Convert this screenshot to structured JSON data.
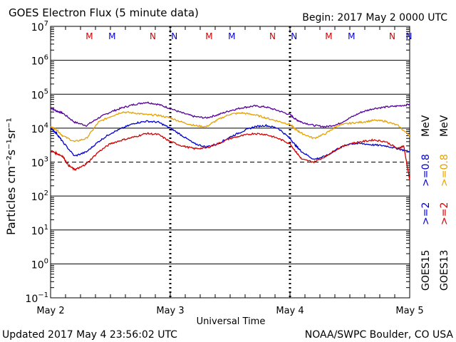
{
  "chart_data": {
    "type": "line",
    "title": "GOES Electron Flux (5 minute data)",
    "begin_label": "Begin: 2017 May 2 0000 UTC",
    "xlabel": "Universal Time",
    "ylabel": "Particles cm⁻²s⁻¹sr⁻¹",
    "updated": "Updated 2017 May  4 23:56:02 UTC",
    "credit": "NOAA/SWPC Boulder, CO USA",
    "x_unit": "days since 2017 May 2 0000 UTC",
    "xlim": [
      0,
      3
    ],
    "x_ticks": [
      {
        "x": 0,
        "label": "May 2"
      },
      {
        "x": 1,
        "label": "May 3"
      },
      {
        "x": 2,
        "label": "May 4"
      },
      {
        "x": 3,
        "label": "May 5"
      }
    ],
    "y_scale": "log",
    "ylim": [
      0.1,
      10000000
    ],
    "y_ticks": [
      {
        "exp": 7,
        "label": "10",
        "sup": "7"
      },
      {
        "exp": 6,
        "label": "10",
        "sup": "6"
      },
      {
        "exp": 5,
        "label": "10",
        "sup": "5"
      },
      {
        "exp": 4,
        "label": "10",
        "sup": "4"
      },
      {
        "exp": 3,
        "label": "10",
        "sup": "3"
      },
      {
        "exp": 2,
        "label": "10",
        "sup": "2"
      },
      {
        "exp": 1,
        "label": "10",
        "sup": "1"
      },
      {
        "exp": 0,
        "label": "10",
        "sup": "0"
      },
      {
        "exp": -1,
        "label": "10",
        "sup": "−1"
      }
    ],
    "threshold": {
      "value": 1000,
      "style": "dashed"
    },
    "grid": true,
    "markers": [
      {
        "x": 0.33,
        "label": "M",
        "color": "#d00000"
      },
      {
        "x": 0.52,
        "label": "M",
        "color": "#0000cc"
      },
      {
        "x": 0.86,
        "label": "N",
        "color": "#d00000"
      },
      {
        "x": 1.04,
        "label": "N",
        "color": "#0000cc"
      },
      {
        "x": 1.33,
        "label": "M",
        "color": "#d00000"
      },
      {
        "x": 1.52,
        "label": "M",
        "color": "#0000cc"
      },
      {
        "x": 1.86,
        "label": "N",
        "color": "#d00000"
      },
      {
        "x": 2.04,
        "label": "N",
        "color": "#0000cc"
      },
      {
        "x": 2.33,
        "label": "M",
        "color": "#d00000"
      },
      {
        "x": 2.52,
        "label": "M",
        "color": "#0000cc"
      },
      {
        "x": 2.86,
        "label": "N",
        "color": "#d00000"
      },
      {
        "x": 3.04,
        "label": "N",
        "color": "#0000cc"
      }
    ],
    "legend": {
      "placement": "right",
      "entries": [
        {
          "text": ">=2",
          "color": "#0000cc"
        },
        {
          "text": ">=2",
          "color": "#d00000"
        },
        {
          "text": ">=0.8",
          "color": "#0000cc"
        },
        {
          "text": ">=0.8",
          "color": "#e8a000"
        },
        {
          "text": "MeV",
          "color": "#000000"
        },
        {
          "text": "GOES15",
          "color": "#000000"
        },
        {
          "text": "GOES13",
          "color": "#000000"
        }
      ]
    },
    "series": [
      {
        "name": "GOES15 >=0.8 MeV",
        "color": "#550099",
        "x": [
          0,
          0.05,
          0.1,
          0.2,
          0.3,
          0.4,
          0.5,
          0.6,
          0.7,
          0.8,
          0.9,
          1.0,
          1.1,
          1.2,
          1.3,
          1.4,
          1.5,
          1.6,
          1.7,
          1.8,
          1.9,
          2.0,
          2.05,
          2.1,
          2.2,
          2.3,
          2.4,
          2.5,
          2.6,
          2.7,
          2.8,
          2.9,
          3.0
        ],
        "y": [
          40000,
          32000,
          28000,
          15000,
          12000,
          20000,
          30000,
          40000,
          50000,
          58000,
          50000,
          38000,
          28000,
          22000,
          20000,
          25000,
          33000,
          40000,
          45000,
          42000,
          33000,
          25000,
          18000,
          15000,
          12000,
          11000,
          13000,
          20000,
          30000,
          38000,
          42000,
          45000,
          50000
        ]
      },
      {
        "name": "GOES13 >=0.8 MeV",
        "color": "#e8a000",
        "x": [
          0,
          0.05,
          0.1,
          0.2,
          0.3,
          0.4,
          0.5,
          0.6,
          0.7,
          0.8,
          0.9,
          1.0,
          1.1,
          1.2,
          1.3,
          1.4,
          1.5,
          1.6,
          1.7,
          1.8,
          1.9,
          2.0,
          2.05,
          2.1,
          2.2,
          2.3,
          2.4,
          2.5,
          2.6,
          2.7,
          2.8,
          2.9,
          3.0
        ],
        "y": [
          11000,
          9000,
          6000,
          4000,
          5000,
          15000,
          22000,
          30000,
          28000,
          25000,
          24000,
          20000,
          15000,
          12000,
          11000,
          18000,
          26000,
          28000,
          25000,
          20000,
          16000,
          13000,
          9000,
          7000,
          5000,
          7000,
          12000,
          14000,
          15000,
          17000,
          16000,
          12000,
          6000
        ]
      },
      {
        "name": "GOES15 >=2 MeV",
        "color": "#0000cc",
        "x": [
          0,
          0.05,
          0.1,
          0.2,
          0.3,
          0.4,
          0.5,
          0.6,
          0.7,
          0.8,
          0.9,
          1.0,
          1.1,
          1.2,
          1.3,
          1.4,
          1.5,
          1.6,
          1.7,
          1.8,
          1.9,
          2.0,
          2.05,
          2.1,
          2.2,
          2.3,
          2.4,
          2.5,
          2.6,
          2.7,
          2.8,
          2.9,
          3.0
        ],
        "y": [
          10000,
          7000,
          4000,
          1500,
          2000,
          4000,
          7000,
          10000,
          14000,
          16000,
          15000,
          10000,
          6000,
          3500,
          2800,
          3500,
          5500,
          8000,
          11000,
          12000,
          10000,
          5000,
          3000,
          2000,
          1200,
          1500,
          2500,
          3500,
          3500,
          3200,
          3000,
          2500,
          2000
        ]
      },
      {
        "name": "GOES13 >=2 MeV",
        "color": "#d00000",
        "x": [
          0,
          0.05,
          0.1,
          0.15,
          0.2,
          0.25,
          0.3,
          0.4,
          0.5,
          0.6,
          0.7,
          0.8,
          0.9,
          1.0,
          1.1,
          1.2,
          1.3,
          1.4,
          1.5,
          1.6,
          1.7,
          1.8,
          1.9,
          2.0,
          2.05,
          2.1,
          2.2,
          2.3,
          2.4,
          2.5,
          2.6,
          2.7,
          2.8,
          2.9,
          2.95,
          3.0
        ],
        "y": [
          2200,
          1800,
          1500,
          800,
          600,
          700,
          900,
          2000,
          3500,
          4500,
          5500,
          7000,
          6500,
          4000,
          3000,
          2500,
          2600,
          3500,
          5000,
          6000,
          7000,
          6500,
          5000,
          3500,
          2000,
          1200,
          1000,
          1500,
          2500,
          3500,
          4000,
          4500,
          4000,
          2500,
          3000,
          300
        ]
      }
    ]
  }
}
